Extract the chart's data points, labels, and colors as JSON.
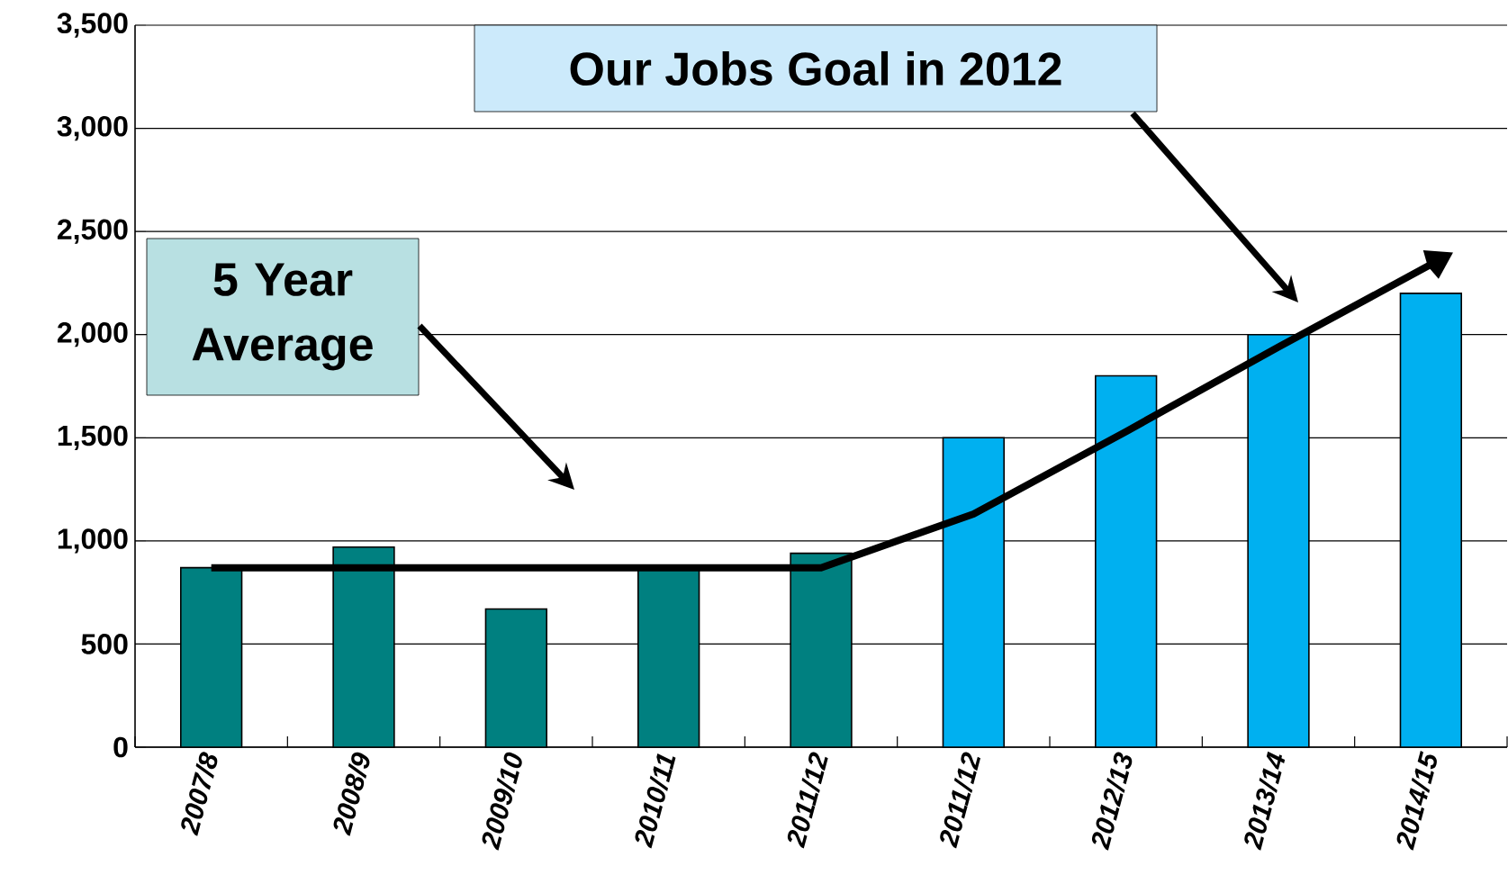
{
  "chart_data": {
    "type": "bar",
    "categories": [
      "2007/8",
      "2008/9",
      "2009/10",
      "2010/11",
      "2011/12",
      "2011/12",
      "2012/13",
      "2013/14",
      "2014/15"
    ],
    "series": [
      {
        "values": [
          870,
          970,
          670,
          870,
          940,
          1500,
          1800,
          2000,
          2200
        ],
        "colors": [
          "#008080",
          "#008080",
          "#008080",
          "#008080",
          "#008080",
          "#00b0f0",
          "#00b0f0",
          "#00b0f0",
          "#00b0f0"
        ]
      },
      {
        "type": "line",
        "color": "#000000",
        "values": [
          870,
          870,
          870,
          870,
          870,
          1130,
          1530,
          1940,
          2340
        ]
      }
    ],
    "ylim": [
      0,
      3500
    ],
    "yticks": [
      0,
      500,
      {
        "value": 1000,
        "label": "1,000"
      },
      {
        "value": 1500,
        "label": "1,500"
      },
      {
        "value": 2000,
        "label": "2,000"
      },
      {
        "value": 2500,
        "label": "2,500"
      },
      {
        "value": 3000,
        "label": "3,000"
      },
      {
        "value": 3500,
        "label": "3,500"
      }
    ],
    "grid": "y",
    "marker": "none",
    "annotations": [
      "Our Jobs Goal in 2012",
      "5 Year Average"
    ]
  }
}
